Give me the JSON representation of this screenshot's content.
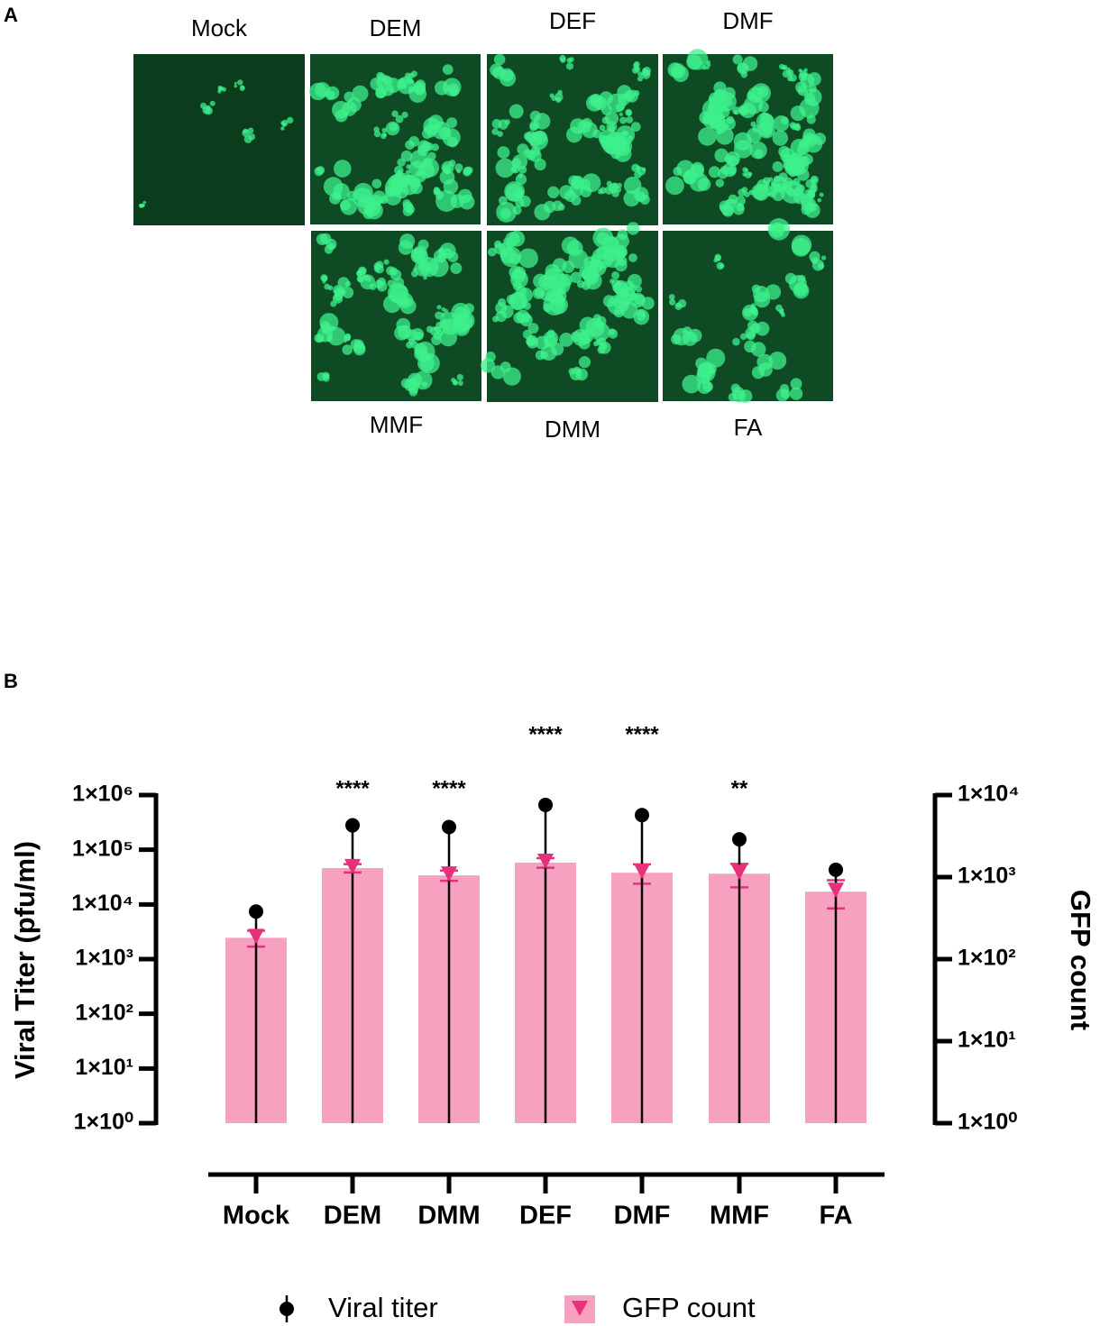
{
  "panel_a": {
    "label": "A",
    "images": [
      {
        "label": "Mock"
      },
      {
        "label": "DEM"
      },
      {
        "label": "DEF"
      },
      {
        "label": "DMF"
      },
      {
        "label": "MMF"
      },
      {
        "label": "DMM"
      },
      {
        "label": "FA"
      }
    ]
  },
  "chart_data": {
    "type": "bar",
    "panel_label": "B",
    "y_label": "Viral Titer (pfu/ml)",
    "y2_label": "GFP count",
    "categories": [
      "Mock",
      "DEM",
      "DMM",
      "DEF",
      "DMF",
      "MMF",
      "FA"
    ],
    "yscale": "log",
    "y2scale": "log",
    "ylim": [
      1,
      1000000
    ],
    "yticks": [
      {
        "value": 1,
        "label": "1×10⁰"
      },
      {
        "value": 10,
        "label": "1×10¹"
      },
      {
        "value": 100,
        "label": "1×10²"
      },
      {
        "value": 1000,
        "label": "1×10³"
      },
      {
        "value": 10000,
        "label": "1×10⁴"
      },
      {
        "value": 100000,
        "label": "1×10⁵"
      },
      {
        "value": 1000000,
        "label": "1×10⁶"
      }
    ],
    "y2lim": [
      1,
      10000
    ],
    "y2ticks": [
      {
        "value": 1,
        "label": "1×10⁰"
      },
      {
        "value": 10,
        "label": "1×10¹"
      },
      {
        "value": 100,
        "label": "1×10²"
      },
      {
        "value": 1000,
        "label": "1×10³"
      },
      {
        "value": 10000,
        "label": "1×10⁴"
      }
    ],
    "series": [
      {
        "name": "Viral titer",
        "color": "#000000",
        "marker": "circle",
        "values": [
          7400,
          280000,
          260000,
          660000,
          430000,
          155000,
          43000
        ],
        "errors": [
          8000,
          300000,
          280000,
          700000,
          450000,
          160000,
          45000
        ]
      },
      {
        "name": "GFP count",
        "color": "#f7a1c1",
        "marker_color": "#e8317a",
        "marker": "triangle-down",
        "axis": "y2",
        "values": [
          182,
          1290,
          1050,
          1500,
          1130,
          1100,
          665
        ],
        "errors": [
          40,
          150,
          150,
          200,
          300,
          350,
          250
        ]
      }
    ],
    "significance": [
      null,
      "****",
      "****",
      "****",
      "****",
      "**",
      null
    ]
  }
}
